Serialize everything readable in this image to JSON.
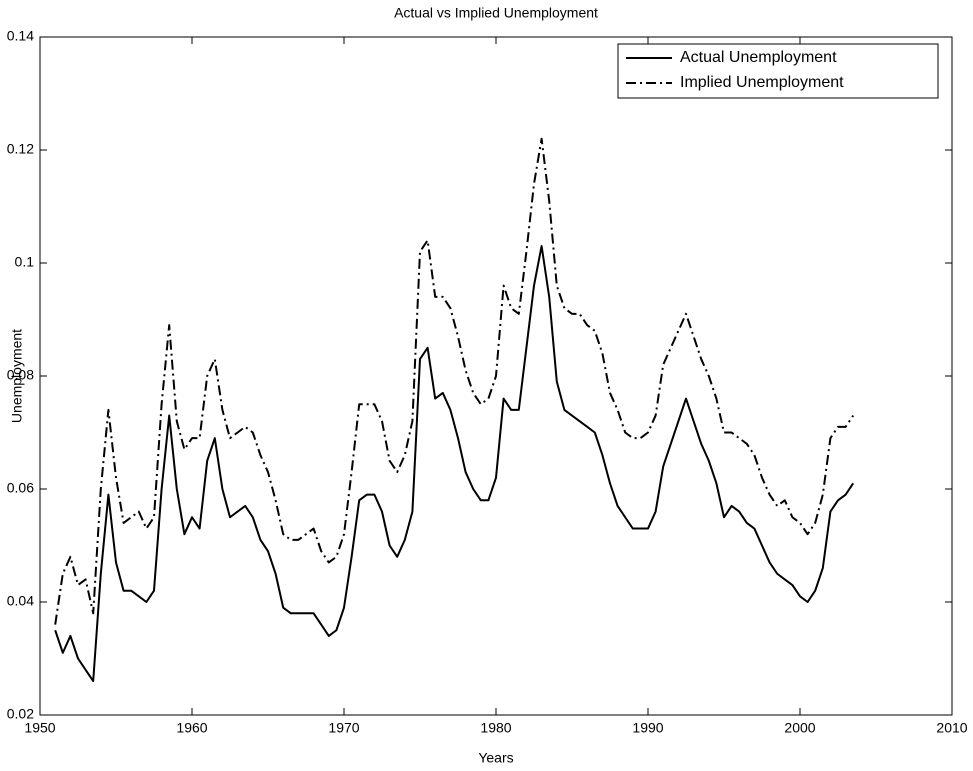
{
  "chart_data": {
    "type": "line",
    "title": "Actual vs Implied Unemployment",
    "xlabel": "Years",
    "ylabel": "Unemployment",
    "xlim": [
      1950,
      2010
    ],
    "xticks": [
      1950,
      1960,
      1970,
      1980,
      1990,
      2000,
      2010
    ],
    "ylim": [
      0.02,
      0.14
    ],
    "yticks": [
      0.02,
      0.04,
      0.06,
      0.08,
      0.1,
      0.12,
      0.14
    ],
    "legend": "upper right",
    "x": [
      1951,
      1951.5,
      1952,
      1952.5,
      1953,
      1953.5,
      1954,
      1954.5,
      1955,
      1955.5,
      1956,
      1956.5,
      1957,
      1957.5,
      1958,
      1958.5,
      1959,
      1959.5,
      1960,
      1960.5,
      1961,
      1961.5,
      1962,
      1962.5,
      1963,
      1963.5,
      1964,
      1964.5,
      1965,
      1965.5,
      1966,
      1966.5,
      1967,
      1967.5,
      1968,
      1968.5,
      1969,
      1969.5,
      1970,
      1970.5,
      1971,
      1971.5,
      1972,
      1972.5,
      1973,
      1973.5,
      1974,
      1974.5,
      1975,
      1975.5,
      1976,
      1976.5,
      1977,
      1977.5,
      1978,
      1978.5,
      1979,
      1979.5,
      1980,
      1980.5,
      1981,
      1981.5,
      1982,
      1982.5,
      1983,
      1983.5,
      1984,
      1984.5,
      1985,
      1985.5,
      1986,
      1986.5,
      1987,
      1987.5,
      1988,
      1988.5,
      1989,
      1989.5,
      1990,
      1990.5,
      1991,
      1991.5,
      1992,
      1992.5,
      1993,
      1993.5,
      1994,
      1994.5,
      1995,
      1995.5,
      1996,
      1996.5,
      1997,
      1997.5,
      1998,
      1998.5,
      1999,
      1999.5,
      2000,
      2000.5,
      2001,
      2001.5,
      2002,
      2002.5,
      2003,
      2003.5
    ],
    "series": [
      {
        "name": "Actual Unemployment",
        "color": "#000000",
        "linestyle": "solid",
        "values": [
          0.035,
          0.031,
          0.034,
          0.03,
          0.028,
          0.026,
          0.045,
          0.059,
          0.047,
          0.042,
          0.042,
          0.041,
          0.04,
          0.042,
          0.06,
          0.073,
          0.06,
          0.052,
          0.055,
          0.053,
          0.065,
          0.069,
          0.06,
          0.055,
          0.056,
          0.057,
          0.055,
          0.051,
          0.049,
          0.045,
          0.039,
          0.038,
          0.038,
          0.038,
          0.038,
          0.036,
          0.034,
          0.035,
          0.039,
          0.048,
          0.058,
          0.059,
          0.059,
          0.056,
          0.05,
          0.048,
          0.051,
          0.056,
          0.083,
          0.085,
          0.076,
          0.077,
          0.074,
          0.069,
          0.063,
          0.06,
          0.058,
          0.058,
          0.062,
          0.076,
          0.074,
          0.074,
          0.085,
          0.096,
          0.103,
          0.094,
          0.079,
          0.074,
          0.073,
          0.072,
          0.071,
          0.07,
          0.066,
          0.061,
          0.057,
          0.055,
          0.053,
          0.053,
          0.053,
          0.056,
          0.064,
          0.068,
          0.072,
          0.076,
          0.072,
          0.068,
          0.065,
          0.061,
          0.055,
          0.057,
          0.056,
          0.054,
          0.053,
          0.05,
          0.047,
          0.045,
          0.044,
          0.043,
          0.041,
          0.04,
          0.042,
          0.046,
          0.056,
          0.058,
          0.059,
          0.061
        ]
      },
      {
        "name": "Implied Unemployment",
        "color": "#000000",
        "linestyle": "dashdot",
        "values": [
          0.036,
          0.045,
          0.048,
          0.043,
          0.044,
          0.038,
          0.06,
          0.074,
          0.062,
          0.054,
          0.055,
          0.056,
          0.053,
          0.055,
          0.075,
          0.089,
          0.072,
          0.067,
          0.069,
          0.069,
          0.08,
          0.083,
          0.074,
          0.069,
          0.07,
          0.071,
          0.07,
          0.066,
          0.063,
          0.058,
          0.052,
          0.051,
          0.051,
          0.052,
          0.053,
          0.049,
          0.047,
          0.048,
          0.052,
          0.063,
          0.075,
          0.075,
          0.075,
          0.072,
          0.065,
          0.063,
          0.066,
          0.072,
          0.102,
          0.104,
          0.094,
          0.094,
          0.092,
          0.087,
          0.081,
          0.077,
          0.075,
          0.076,
          0.08,
          0.096,
          0.092,
          0.091,
          0.102,
          0.114,
          0.122,
          0.111,
          0.096,
          0.092,
          0.091,
          0.091,
          0.089,
          0.088,
          0.084,
          0.077,
          0.074,
          0.07,
          0.069,
          0.069,
          0.07,
          0.073,
          0.082,
          0.085,
          0.088,
          0.091,
          0.087,
          0.083,
          0.08,
          0.076,
          0.07,
          0.07,
          0.069,
          0.068,
          0.066,
          0.062,
          0.059,
          0.057,
          0.058,
          0.055,
          0.054,
          0.052,
          0.054,
          0.059,
          0.069,
          0.071,
          0.071,
          0.073
        ]
      }
    ]
  }
}
